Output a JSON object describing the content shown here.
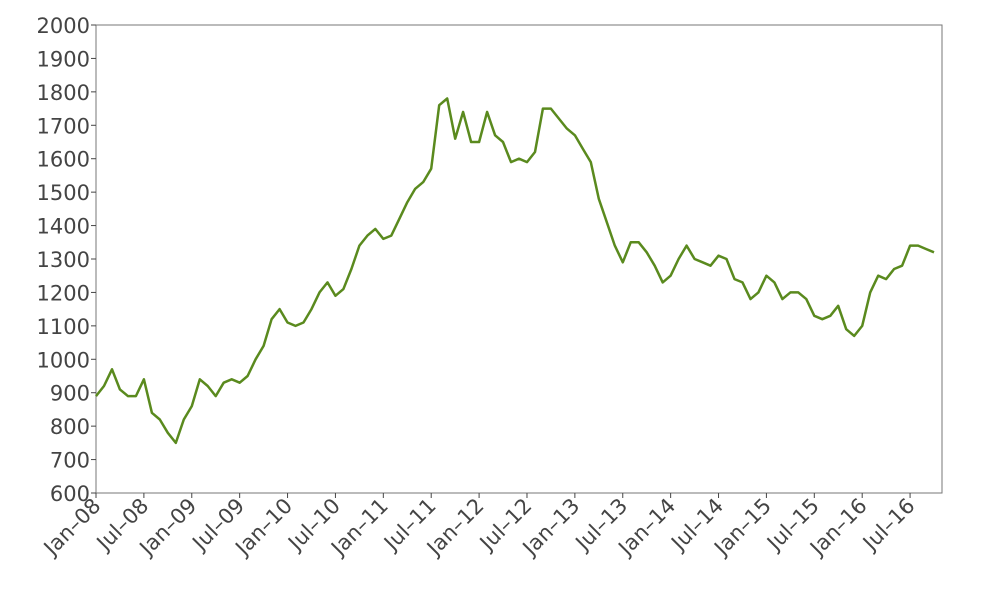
{
  "chart_data": {
    "type": "line",
    "color": "#5a8a1e",
    "x": [
      "2008-01",
      "2008-02",
      "2008-03",
      "2008-04",
      "2008-05",
      "2008-06",
      "2008-07",
      "2008-08",
      "2008-09",
      "2008-10",
      "2008-11",
      "2008-12",
      "2009-01",
      "2009-02",
      "2009-03",
      "2009-04",
      "2009-05",
      "2009-06",
      "2009-07",
      "2009-08",
      "2009-09",
      "2009-10",
      "2009-11",
      "2009-12",
      "2010-01",
      "2010-02",
      "2010-03",
      "2010-04",
      "2010-05",
      "2010-06",
      "2010-07",
      "2010-08",
      "2010-09",
      "2010-10",
      "2010-11",
      "2010-12",
      "2011-01",
      "2011-02",
      "2011-03",
      "2011-04",
      "2011-05",
      "2011-06",
      "2011-07",
      "2011-08",
      "2011-09",
      "2011-10",
      "2011-11",
      "2011-12",
      "2012-01",
      "2012-02",
      "2012-03",
      "2012-04",
      "2012-05",
      "2012-06",
      "2012-07",
      "2012-08",
      "2012-09",
      "2012-10",
      "2012-11",
      "2012-12",
      "2013-01",
      "2013-02",
      "2013-03",
      "2013-04",
      "2013-05",
      "2013-06",
      "2013-07",
      "2013-08",
      "2013-09",
      "2013-10",
      "2013-11",
      "2013-12",
      "2014-01",
      "2014-02",
      "2014-03",
      "2014-04",
      "2014-05",
      "2014-06",
      "2014-07",
      "2014-08",
      "2014-09",
      "2014-10",
      "2014-11",
      "2014-12",
      "2015-01",
      "2015-02",
      "2015-03",
      "2015-04",
      "2015-05",
      "2015-06",
      "2015-07",
      "2015-08",
      "2015-09",
      "2015-10",
      "2015-11",
      "2015-12",
      "2016-01",
      "2016-02",
      "2016-03",
      "2016-04",
      "2016-05",
      "2016-06",
      "2016-07",
      "2016-08",
      "2016-09",
      "2016-10"
    ],
    "values": [
      890,
      920,
      970,
      910,
      890,
      890,
      940,
      840,
      820,
      780,
      750,
      820,
      860,
      940,
      920,
      890,
      930,
      940,
      930,
      950,
      1000,
      1040,
      1120,
      1150,
      1110,
      1100,
      1110,
      1150,
      1200,
      1230,
      1190,
      1210,
      1270,
      1340,
      1370,
      1390,
      1360,
      1370,
      1420,
      1470,
      1510,
      1530,
      1570,
      1760,
      1780,
      1660,
      1740,
      1650,
      1650,
      1740,
      1670,
      1650,
      1590,
      1600,
      1590,
      1620,
      1750,
      1750,
      1720,
      1690,
      1670,
      1630,
      1590,
      1480,
      1410,
      1340,
      1290,
      1350,
      1350,
      1320,
      1280,
      1230,
      1250,
      1300,
      1340,
      1300,
      1290,
      1280,
      1310,
      1300,
      1240,
      1230,
      1180,
      1200,
      1250,
      1230,
      1180,
      1200,
      1200,
      1180,
      1130,
      1120,
      1130,
      1160,
      1090,
      1070,
      1100,
      1200,
      1250,
      1240,
      1270,
      1280,
      1340,
      1340,
      1330,
      1320
    ],
    "xlim": [
      "2008-01",
      "2016-11"
    ],
    "xticks": [
      {
        "value": "2008-01",
        "label": "Jan–08"
      },
      {
        "value": "2008-07",
        "label": "Jul–08"
      },
      {
        "value": "2009-01",
        "label": "Jan–09"
      },
      {
        "value": "2009-07",
        "label": "Jul–09"
      },
      {
        "value": "2010-01",
        "label": "Jan–10"
      },
      {
        "value": "2010-07",
        "label": "Jul–10"
      },
      {
        "value": "2011-01",
        "label": "Jan–11"
      },
      {
        "value": "2011-07",
        "label": "Jul–11"
      },
      {
        "value": "2012-01",
        "label": "Jan–12"
      },
      {
        "value": "2012-07",
        "label": "Jul–12"
      },
      {
        "value": "2013-01",
        "label": "Jan–13"
      },
      {
        "value": "2013-07",
        "label": "Jul–13"
      },
      {
        "value": "2014-01",
        "label": "Jan–14"
      },
      {
        "value": "2014-07",
        "label": "Jul–14"
      },
      {
        "value": "2015-01",
        "label": "Jan–15"
      },
      {
        "value": "2015-07",
        "label": "Jul–15"
      },
      {
        "value": "2016-01",
        "label": "Jan–16"
      },
      {
        "value": "2016-07",
        "label": "Jul–16"
      }
    ],
    "ylim": [
      600,
      2000
    ],
    "yticks": [
      600,
      700,
      800,
      900,
      1000,
      1100,
      1200,
      1300,
      1400,
      1500,
      1600,
      1700,
      1800,
      1900,
      2000
    ]
  }
}
